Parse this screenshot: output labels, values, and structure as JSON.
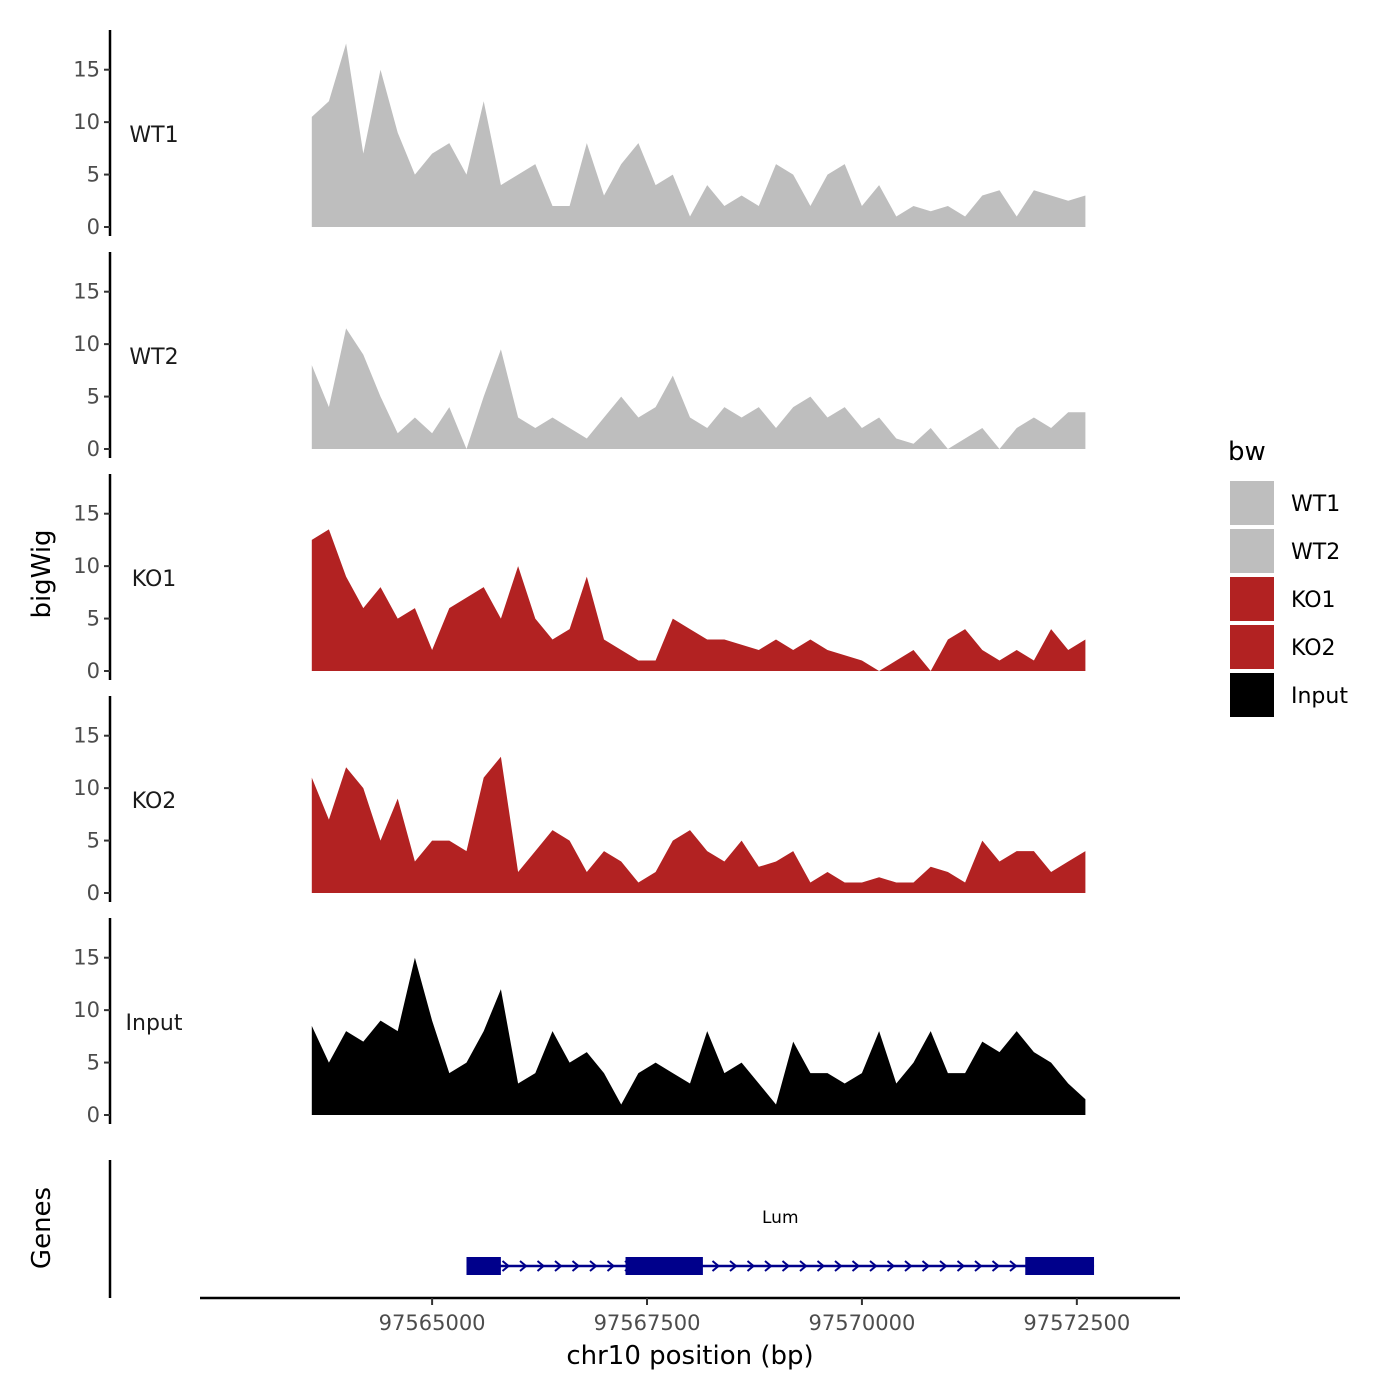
{
  "chart_data": {
    "type": "area",
    "layout": "stacked-tracks",
    "chromosome": "chr10",
    "xlabel": "chr10 position (bp)",
    "ylabel": "bigWig",
    "genes_label": "Genes",
    "xlim": [
      97562300,
      97573700
    ],
    "xticks": [
      97565000,
      97567500,
      97570000,
      97572500
    ],
    "xtick_labels": [
      "97565000",
      "97567500",
      "97570000",
      "97572500"
    ],
    "ylim": [
      0,
      18.5
    ],
    "yticks": [
      0,
      5,
      10,
      15
    ],
    "ytick_labels": [
      "0",
      "5",
      "10",
      "15"
    ],
    "legend": {
      "title": "bw",
      "placement": "right",
      "entries": [
        {
          "label": "WT1",
          "color": "#bebebe"
        },
        {
          "label": "WT2",
          "color": "#bebebe"
        },
        {
          "label": "KO1",
          "color": "#b22222"
        },
        {
          "label": "KO2",
          "color": "#b22222"
        },
        {
          "label": "Input",
          "color": "#000000"
        }
      ]
    },
    "x": [
      97563600,
      97563800,
      97564000,
      97564200,
      97564400,
      97564600,
      97564800,
      97565000,
      97565200,
      97565400,
      97565600,
      97565800,
      97566000,
      97566200,
      97566400,
      97566600,
      97566800,
      97567000,
      97567200,
      97567400,
      97567600,
      97567800,
      97568000,
      97568200,
      97568400,
      97568600,
      97568800,
      97569000,
      97569200,
      97569400,
      97569600,
      97569800,
      97570000,
      97570200,
      97570400,
      97570600,
      97570800,
      97571000,
      97571200,
      97571400,
      97571600,
      97571800,
      97572000,
      97572200,
      97572400,
      97572600
    ],
    "series": [
      {
        "name": "WT1",
        "color": "#bebebe",
        "values": [
          10.5,
          12,
          17.5,
          7,
          15,
          9,
          5,
          7,
          8,
          5,
          12,
          4,
          5,
          6,
          2,
          2,
          8,
          3,
          6,
          8,
          4,
          5,
          1,
          4,
          2,
          3,
          2,
          6,
          5,
          2,
          5,
          6,
          2,
          4,
          1,
          2,
          1.5,
          2,
          1,
          3,
          3.5,
          1,
          3.5,
          3,
          2.5,
          3
        ]
      },
      {
        "name": "WT2",
        "color": "#bebebe",
        "values": [
          8,
          4,
          11.5,
          9,
          5,
          1.5,
          3,
          1.5,
          4,
          0,
          5,
          9.5,
          3,
          2,
          3,
          2,
          1,
          3,
          5,
          3,
          4,
          7,
          3,
          2,
          4,
          3,
          4,
          2,
          4,
          5,
          3,
          4,
          2,
          3,
          1,
          0.5,
          2,
          0,
          1,
          2,
          0,
          2,
          3,
          2,
          3.5,
          3.5
        ]
      },
      {
        "name": "KO1",
        "color": "#b22222",
        "values": [
          12.5,
          13.5,
          9,
          6,
          8,
          5,
          6,
          2,
          6,
          7,
          8,
          5,
          10,
          5,
          3,
          4,
          9,
          3,
          2,
          1,
          1,
          5,
          4,
          3,
          3,
          2.5,
          2,
          3,
          2,
          3,
          2,
          1.5,
          1,
          0,
          1,
          2,
          0,
          3,
          4,
          2,
          1,
          2,
          1,
          4,
          2,
          3
        ]
      },
      {
        "name": "KO2",
        "color": "#b22222",
        "values": [
          11,
          7,
          12,
          10,
          5,
          9,
          3,
          5,
          5,
          4,
          11,
          13,
          2,
          4,
          6,
          5,
          2,
          4,
          3,
          1,
          2,
          5,
          6,
          4,
          3,
          5,
          2.5,
          3,
          4,
          1,
          2,
          1,
          1,
          1.5,
          1,
          1,
          2.5,
          2,
          1,
          5,
          3,
          4,
          4,
          2,
          3,
          4
        ]
      },
      {
        "name": "Input",
        "color": "#000000",
        "values": [
          8.5,
          5,
          8,
          7,
          9,
          8,
          15,
          9,
          4,
          5,
          8,
          12,
          3,
          4,
          8,
          5,
          6,
          4,
          1,
          4,
          5,
          4,
          3,
          8,
          4,
          5,
          3,
          1,
          7,
          4,
          4,
          3,
          4,
          8,
          3,
          5,
          8,
          4,
          4,
          7,
          6,
          8,
          6,
          5,
          3,
          1.5
        ]
      }
    ],
    "gene_track": {
      "gene_name": "Lum",
      "strand": "+",
      "start": 97565400,
      "end": 97572700,
      "exons": [
        [
          97565400,
          97565800
        ],
        [
          97567250,
          97568150
        ],
        [
          97571900,
          97572700
        ]
      ]
    }
  }
}
